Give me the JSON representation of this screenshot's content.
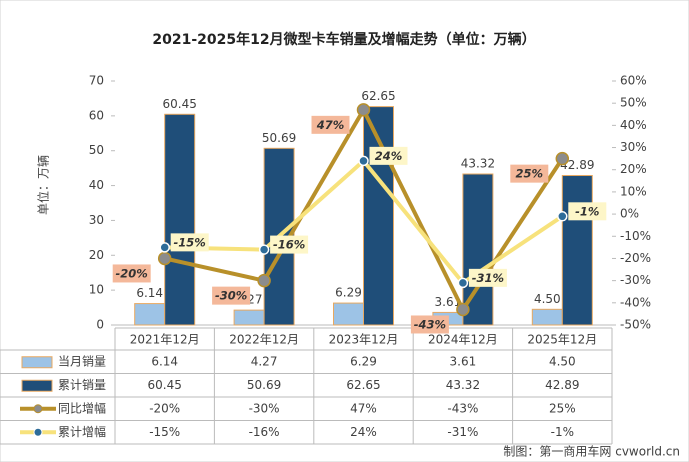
{
  "chart_data": {
    "type": "bar_line_table",
    "title": "2021-2025年12月微型卡车销量及增幅走势（单位：万辆）",
    "y_label": "单位：万辆",
    "source": "制图：第一商用车网 cvworld.cn",
    "categories": [
      "2021年12月",
      "2022年12月",
      "2023年12月",
      "2024年12月",
      "2025年12月"
    ],
    "ylim": [
      0,
      70
    ],
    "yticks": [
      0,
      10,
      20,
      30,
      40,
      50,
      60,
      70
    ],
    "y2lim": [
      -50,
      60
    ],
    "y2ticks": [
      {
        "value": -50,
        "label": "-50%"
      },
      {
        "value": -40,
        "label": "-40%"
      },
      {
        "value": -30,
        "label": "-30%"
      },
      {
        "value": -20,
        "label": "-20%"
      },
      {
        "value": -10,
        "label": "-10%"
      },
      {
        "value": 0,
        "label": "0%"
      },
      {
        "value": 10,
        "label": "10%"
      },
      {
        "value": 20,
        "label": "20%"
      },
      {
        "value": 30,
        "label": "30%"
      },
      {
        "value": 40,
        "label": "40%"
      },
      {
        "value": 50,
        "label": "50%"
      },
      {
        "value": 60,
        "label": "60%"
      }
    ],
    "series": [
      {
        "name": "当月销量",
        "type": "bar",
        "color": "#9dc3e6",
        "values": [
          6.14,
          4.27,
          6.29,
          3.61,
          4.5
        ],
        "value_labels": [
          "6.14",
          "4.27",
          "6.29",
          "3.61",
          "4.50"
        ]
      },
      {
        "name": "累计销量",
        "type": "bar",
        "color": "#1f4e79",
        "values": [
          60.45,
          50.69,
          62.65,
          43.32,
          42.89
        ]
      },
      {
        "name": "同比增幅",
        "type": "line",
        "axis": "y2",
        "color": "#b8902a",
        "values": [
          -20,
          -30,
          47,
          -43,
          25
        ],
        "value_labels": [
          "-20%",
          "-30%",
          "47%",
          "-43%",
          "25%"
        ]
      },
      {
        "name": "累计增幅",
        "type": "line",
        "axis": "y2",
        "color": "#f7e27c",
        "values": [
          -15,
          -16,
          24,
          -31,
          -1
        ],
        "value_labels": [
          "-15%",
          "-16%",
          "24%",
          "-31%",
          "-1%"
        ]
      }
    ]
  }
}
